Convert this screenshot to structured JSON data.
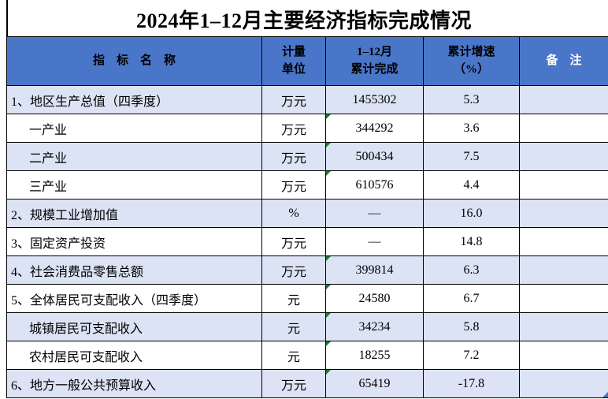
{
  "title": "2024年1–12月主要经济指标完成情况",
  "colors": {
    "header_bg": "#4a76c9",
    "row_shaded": "#dbe3f4",
    "row_plain": "#ffffff",
    "border": "#000000",
    "header_text": "#000000",
    "remark_header_text": "#ffffff",
    "text_flag_green": "#157c33",
    "corner_marker_blue": "#4472c4"
  },
  "table": {
    "headers": {
      "indicator": "指　标　名　称",
      "unit_line1": "计量",
      "unit_line2": "单位",
      "value_line1": "1–12月",
      "value_line2": "累计完成",
      "growth_line1": "累计增速",
      "growth_line2": "（%）",
      "remark": "备　注"
    },
    "rows": [
      {
        "indicator": "1、地区生产总值（四季度）",
        "unit": "万元",
        "value": "1455302",
        "growth": "5.3",
        "remark": "",
        "indent": false,
        "shaded": true,
        "value_flag": false,
        "corner_marker": false
      },
      {
        "indicator": "一产业",
        "unit": "万元",
        "value": "344292",
        "growth": "3.6",
        "remark": "",
        "indent": true,
        "shaded": false,
        "value_flag": true,
        "corner_marker": false
      },
      {
        "indicator": "二产业",
        "unit": "万元",
        "value": "500434",
        "growth": "7.5",
        "remark": "",
        "indent": true,
        "shaded": true,
        "value_flag": true,
        "corner_marker": false
      },
      {
        "indicator": "三产业",
        "unit": "万元",
        "value": "610576",
        "growth": "4.4",
        "remark": "",
        "indent": true,
        "shaded": false,
        "value_flag": true,
        "corner_marker": false
      },
      {
        "indicator": "2、规模工业增加值",
        "unit": "%",
        "value": "—",
        "growth": "16.0",
        "remark": "",
        "indent": false,
        "shaded": true,
        "value_flag": false,
        "corner_marker": false
      },
      {
        "indicator": "3、固定资产投资",
        "unit": "万元",
        "value": "—",
        "growth": "14.8",
        "remark": "",
        "indent": false,
        "shaded": false,
        "value_flag": false,
        "corner_marker": false
      },
      {
        "indicator": "4、社会消费品零售总额",
        "unit": "万元",
        "value": "399814",
        "growth": "6.3",
        "remark": "",
        "indent": false,
        "shaded": true,
        "value_flag": true,
        "corner_marker": false
      },
      {
        "indicator": "5、全体居民可支配收入（四季度）",
        "unit": "元",
        "value": "24580",
        "growth": "6.7",
        "remark": "",
        "indent": false,
        "shaded": false,
        "value_flag": true,
        "corner_marker": false
      },
      {
        "indicator": "城镇居民可支配收入",
        "unit": "元",
        "value": "34234",
        "growth": "5.8",
        "remark": "",
        "indent": true,
        "shaded": true,
        "value_flag": true,
        "corner_marker": false
      },
      {
        "indicator": "农村居民可支配收入",
        "unit": "元",
        "value": "18255",
        "growth": "7.2",
        "remark": "",
        "indent": true,
        "shaded": false,
        "value_flag": true,
        "corner_marker": false
      },
      {
        "indicator": "6、地方一般公共预算收入",
        "unit": "万元",
        "value": "65419",
        "growth": "-17.8",
        "remark": "",
        "indent": false,
        "shaded": true,
        "value_flag": true,
        "corner_marker": true
      }
    ]
  }
}
